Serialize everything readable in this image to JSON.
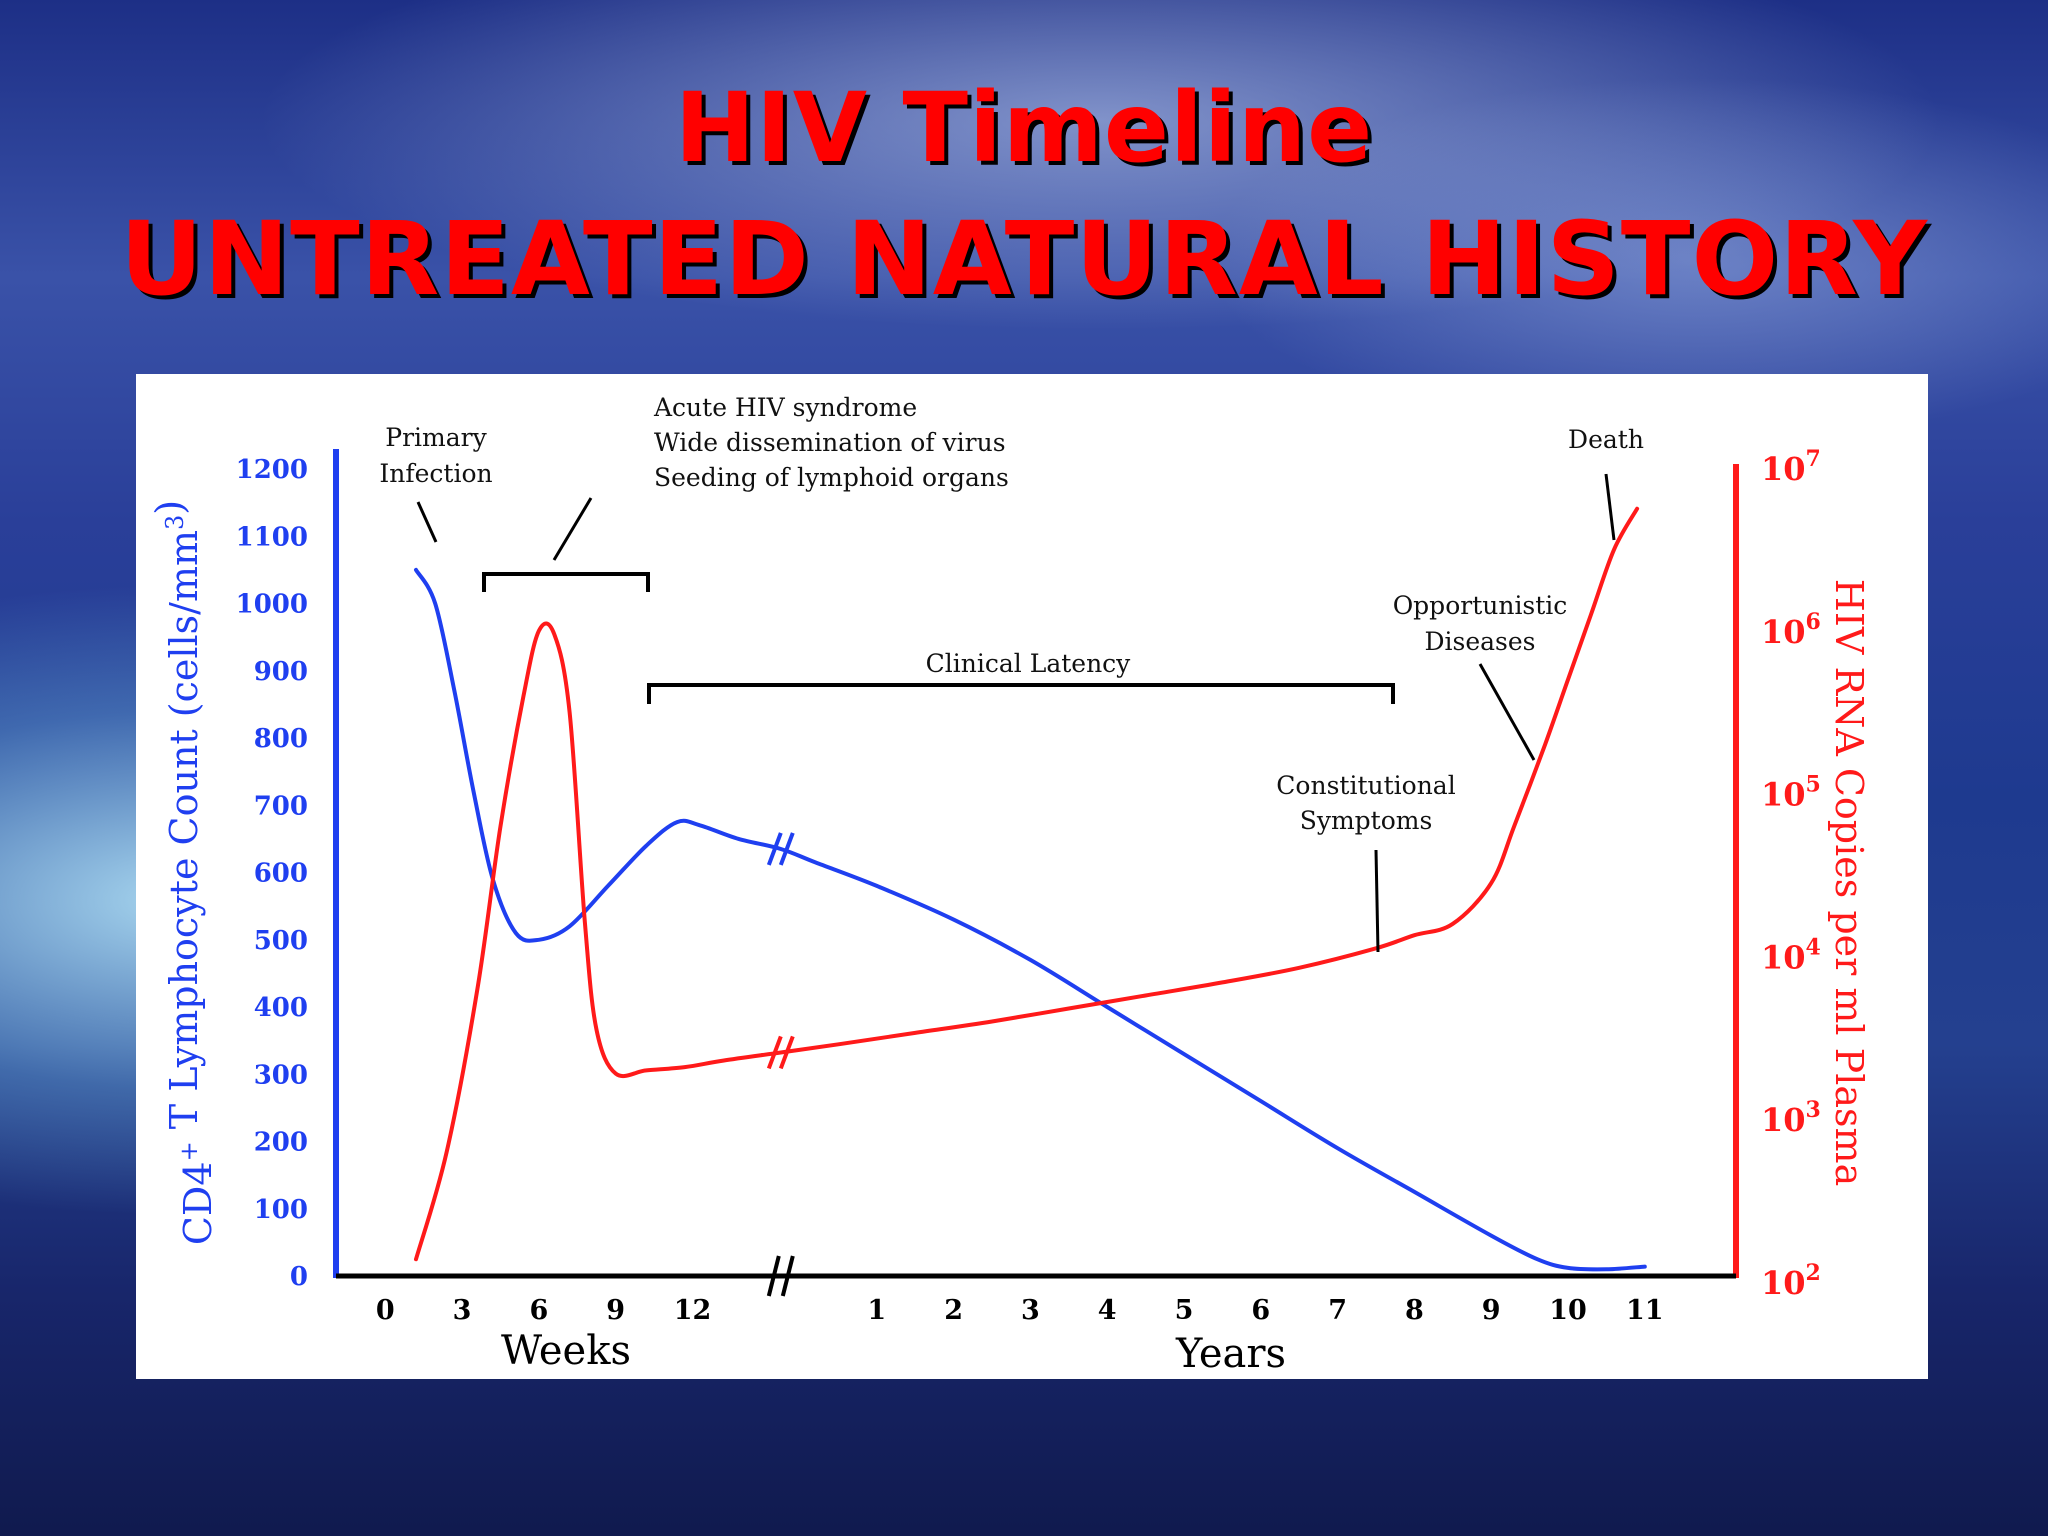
{
  "slide": {
    "title_line1": "HIV Timeline",
    "title_line2": "UNTREATED NATURAL HISTORY"
  },
  "colors": {
    "title": "#ff0000",
    "cd4": "#1f3ff0",
    "rna": "#ff1a1a",
    "axis": "#000000"
  },
  "chart_data": {
    "type": "line",
    "left_axis": {
      "label_main": "CD4",
      "label_sup": "+",
      "label_rest": " T Lymphocyte Count (cells/mm",
      "label_unit_sup": "3",
      "label_end": ")",
      "ticks": [
        "0",
        "100",
        "200",
        "300",
        "400",
        "500",
        "600",
        "700",
        "800",
        "900",
        "1000",
        "1100",
        "1200"
      ],
      "range": [
        0,
        1200
      ]
    },
    "right_axis": {
      "label": "HIV RNA Copies per ml Plasma",
      "scale": "log",
      "tick_values": [
        2,
        3,
        4,
        5,
        6,
        7
      ],
      "range": [
        2,
        7
      ]
    },
    "x_axis": {
      "weeks_label": "Weeks",
      "years_label": "Years",
      "ticks": [
        {
          "label": "0",
          "t": -0.4
        },
        {
          "label": "3",
          "t": 0.6
        },
        {
          "label": "6",
          "t": 1.6
        },
        {
          "label": "9",
          "t": 2.6
        },
        {
          "label": "12",
          "t": 3.6
        },
        {
          "label": "1",
          "t": 6.0
        },
        {
          "label": "2",
          "t": 7.0
        },
        {
          "label": "3",
          "t": 8.0
        },
        {
          "label": "4",
          "t": 9.0
        },
        {
          "label": "5",
          "t": 10.0
        },
        {
          "label": "6",
          "t": 11.0
        },
        {
          "label": "7",
          "t": 12.0
        },
        {
          "label": "8",
          "t": 13.0
        },
        {
          "label": "9",
          "t": 14.0
        },
        {
          "label": "10",
          "t": 15.0
        },
        {
          "label": "11",
          "t": 16.0
        }
      ],
      "break_t": 4.75
    },
    "series": [
      {
        "key": "cd4",
        "points": [
          [
            0.0,
            1050
          ],
          [
            0.25,
            1000
          ],
          [
            0.5,
            870
          ],
          [
            0.75,
            720
          ],
          [
            1.0,
            590
          ],
          [
            1.3,
            510
          ],
          [
            1.6,
            500
          ],
          [
            2.0,
            520
          ],
          [
            2.5,
            580
          ],
          [
            3.0,
            640
          ],
          [
            3.4,
            675
          ],
          [
            3.7,
            670
          ],
          [
            4.2,
            650
          ],
          [
            4.75,
            635
          ],
          [
            5.2,
            615
          ],
          [
            6.0,
            580
          ],
          [
            7.0,
            530
          ],
          [
            8.0,
            470
          ],
          [
            9.0,
            400
          ],
          [
            10.0,
            330
          ],
          [
            11.0,
            260
          ],
          [
            12.0,
            190
          ],
          [
            13.0,
            125
          ],
          [
            14.0,
            60
          ],
          [
            14.6,
            25
          ],
          [
            15.0,
            12
          ],
          [
            15.5,
            10
          ],
          [
            16.0,
            14
          ]
        ]
      },
      {
        "key": "rna",
        "points": [
          [
            0.0,
            2.14
          ],
          [
            0.4,
            2.8
          ],
          [
            0.8,
            3.8
          ],
          [
            1.1,
            4.8
          ],
          [
            1.4,
            5.6
          ],
          [
            1.6,
            6.0
          ],
          [
            1.8,
            5.98
          ],
          [
            2.0,
            5.5
          ],
          [
            2.2,
            4.2
          ],
          [
            2.35,
            3.55
          ],
          [
            2.6,
            3.28
          ],
          [
            3.0,
            3.3
          ],
          [
            3.5,
            3.32
          ],
          [
            4.0,
            3.36
          ],
          [
            4.75,
            3.41
          ],
          [
            5.5,
            3.46
          ],
          [
            6.5,
            3.53
          ],
          [
            7.5,
            3.6
          ],
          [
            8.5,
            3.68
          ],
          [
            9.5,
            3.76
          ],
          [
            10.5,
            3.84
          ],
          [
            11.5,
            3.93
          ],
          [
            12.5,
            4.05
          ],
          [
            13.0,
            4.13
          ],
          [
            13.5,
            4.2
          ],
          [
            14.0,
            4.45
          ],
          [
            14.3,
            4.8
          ],
          [
            14.7,
            5.3
          ],
          [
            15.0,
            5.7
          ],
          [
            15.3,
            6.1
          ],
          [
            15.6,
            6.5
          ],
          [
            15.9,
            6.75
          ]
        ]
      }
    ],
    "annotations": {
      "primary_infection": [
        "Primary",
        "Infection"
      ],
      "acute": [
        "Acute HIV syndrome",
        "Wide dissemination of virus",
        "Seeding of lymphoid organs"
      ],
      "clinical_latency": "Clinical Latency",
      "constitutional": [
        "Constitutional",
        "Symptoms"
      ],
      "opportunistic": [
        "Opportunistic",
        "Diseases"
      ],
      "death": "Death"
    }
  }
}
